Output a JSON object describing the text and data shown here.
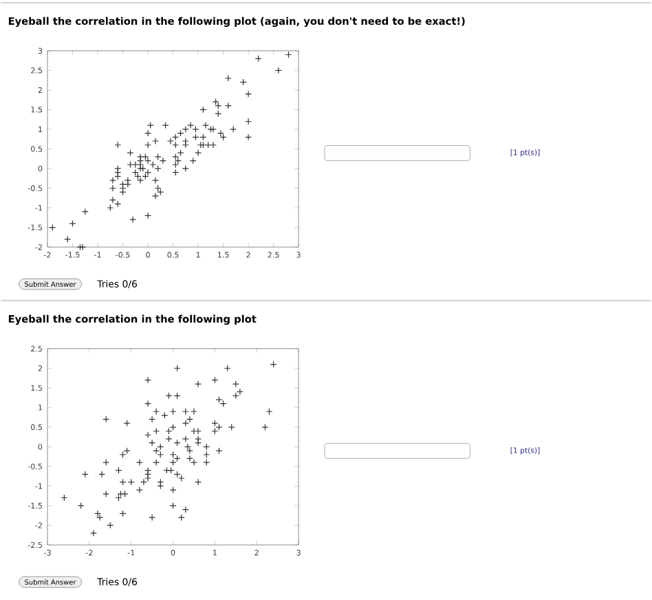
{
  "chart_data": [
    {
      "type": "scatter",
      "title": "Eyeball the correlation in the following plot (again, you don't need to be exact!)",
      "marker": "cross",
      "color": "#333333",
      "x": [
        -1.9,
        -1.6,
        -1.5,
        -1.35,
        -1.3,
        -1.25,
        -0.75,
        -0.7,
        -0.6,
        -0.7,
        -0.7,
        -0.6,
        -0.6,
        -0.6,
        -0.6,
        -0.5,
        -0.5,
        -0.5,
        -0.4,
        -0.4,
        -0.35,
        -0.35,
        -0.25,
        -0.25,
        -0.2,
        -0.15,
        -0.15,
        -0.15,
        -0.15,
        -0.15,
        -0.1,
        -0.05,
        0,
        0,
        0,
        0,
        0.05,
        -0.05,
        0.1,
        -0.3,
        0,
        0.15,
        0.15,
        0.2,
        0.2,
        0.2,
        0.25,
        0.3,
        0.35,
        0.15,
        0.45,
        0.55,
        0.55,
        0.55,
        0.55,
        0.55,
        0.6,
        0.65,
        0.65,
        0.75,
        0.75,
        0.75,
        0.75,
        0.85,
        0.9,
        0.95,
        0.95,
        1.0,
        1.05,
        1.1,
        1.1,
        1.1,
        1.15,
        1.2,
        1.25,
        1.3,
        1.3,
        1.35,
        1.4,
        1.4,
        1.45,
        1.5,
        1.6,
        1.6,
        1.7,
        1.9,
        2.0,
        2.0,
        2.0,
        2.2,
        2.6,
        2.8
      ],
      "values": [
        -1.5,
        -1.8,
        -1.4,
        -2,
        -2,
        -1.1,
        -1,
        -0.8,
        -0.9,
        -0.3,
        -0.5,
        0.6,
        0,
        -0.1,
        -0.2,
        -0.4,
        -0.5,
        -0.6,
        -0.3,
        -0.4,
        0.4,
        0.1,
        0.1,
        -0.1,
        -0.2,
        0.3,
        0.2,
        0.1,
        0,
        -0.3,
        0,
        -0.2,
        0.2,
        -0.1,
        0.6,
        0.9,
        1.1,
        0.3,
        0.1,
        -1.3,
        -1.2,
        -0.7,
        -0.3,
        0,
        0.3,
        -0.5,
        -0.6,
        0.2,
        1.1,
        0.7,
        0.7,
        0.8,
        0.6,
        0.3,
        0.1,
        -0.1,
        0.2,
        0.4,
        0.9,
        1.0,
        0.7,
        0.6,
        0,
        1.1,
        0.2,
        0.8,
        1.0,
        0.4,
        0.6,
        0.8,
        0.6,
        1.5,
        1.1,
        0.6,
        1.0,
        0.6,
        1.0,
        1.7,
        1.6,
        1.4,
        0.9,
        0.8,
        2.3,
        1.6,
        1.0,
        2.2,
        1.9,
        1.2,
        0.8,
        2.8,
        2.5,
        2.9
      ],
      "xlim": [
        -2,
        3
      ],
      "ylim": [
        -2,
        3
      ],
      "xticks": [
        -2,
        -1.5,
        -1,
        -0.5,
        0,
        0.5,
        1,
        1.5,
        2,
        2.5,
        3
      ],
      "yticks": [
        -2,
        -1.5,
        -1,
        -0.5,
        0,
        0.5,
        1,
        1.5,
        2,
        2.5,
        3
      ],
      "annotations": [
        "[1 pt(s)]",
        "Submit Answer",
        "Tries 0/6"
      ]
    },
    {
      "type": "scatter",
      "title": "Eyeball the correlation in the following plot",
      "marker": "cross",
      "color": "#333333",
      "x": [
        -2.6,
        -2.2,
        -2.1,
        -1.9,
        -1.8,
        -1.75,
        -1.7,
        -1.6,
        -1.6,
        -1.6,
        -1.5,
        -1.3,
        -1.3,
        -1.25,
        -1.2,
        -1.2,
        -1.2,
        -1.15,
        -1.1,
        -1.1,
        -1.0,
        -0.8,
        -0.8,
        -0.7,
        -0.6,
        -0.6,
        -0.6,
        -0.6,
        -0.6,
        -0.6,
        -0.5,
        -0.5,
        -0.5,
        -0.4,
        -0.4,
        -0.4,
        -0.4,
        -0.3,
        -0.3,
        -0.3,
        -0.3,
        -0.2,
        -0.15,
        -0.1,
        -0.1,
        -0.1,
        -0.05,
        0,
        0,
        0,
        0,
        0,
        0,
        0.1,
        0.1,
        0.1,
        0.1,
        0.1,
        0.2,
        0.2,
        0.3,
        0.3,
        0.3,
        0.3,
        0.35,
        0.4,
        0.4,
        0.4,
        0.5,
        0.5,
        0.5,
        0.6,
        0.6,
        0.6,
        0.6,
        0.6,
        0.8,
        0.8,
        0.8,
        1.0,
        1.0,
        1.0,
        1.1,
        1.1,
        1.1,
        1.2,
        1.3,
        1.4,
        1.5,
        1.5,
        1.6,
        2.2,
        2.3,
        2.4
      ],
      "values": [
        -1.3,
        -1.5,
        -0.7,
        -2.2,
        -1.7,
        -1.8,
        -0.7,
        -1.2,
        -0.4,
        0.7,
        -2.0,
        -1.3,
        -0.6,
        -1.2,
        -0.9,
        -1.7,
        -0.2,
        -1.2,
        -0.1,
        0.6,
        -0.9,
        -1.1,
        -0.4,
        -0.9,
        1.7,
        1.1,
        0.3,
        -0.6,
        -0.7,
        -0.8,
        0.7,
        0.1,
        -1.8,
        0.9,
        0.4,
        -0.1,
        -0.4,
        0,
        -0.2,
        -0.9,
        -1.0,
        0.8,
        -0.6,
        1.3,
        0.4,
        0.2,
        -0.6,
        0.9,
        0.5,
        -0.2,
        -0.4,
        -1.1,
        -1.5,
        2.0,
        1.3,
        0.1,
        -0.3,
        -0.7,
        -0.8,
        -1.8,
        -1.6,
        0.9,
        0.6,
        0.2,
        0,
        0.7,
        -0.1,
        -0.3,
        0.9,
        0.4,
        -0.4,
        1.6,
        0.4,
        0.2,
        0.1,
        -0.9,
        0,
        -0.2,
        -0.4,
        1.7,
        0.6,
        0.4,
        0.5,
        -0.1,
        1.2,
        1.1,
        2.0,
        0.5,
        1.6,
        1.3,
        1.4,
        0.5,
        0.9,
        2.1
      ],
      "xlim": [
        -3,
        3
      ],
      "ylim": [
        -2.5,
        2.5
      ],
      "xticks": [
        -3,
        -2,
        -1,
        0,
        1,
        2,
        3
      ],
      "yticks": [
        -2.5,
        -2,
        -1.5,
        -1,
        -0.5,
        0,
        0.5,
        1,
        1.5,
        2,
        2.5
      ],
      "annotations": [
        "[1 pt(s)]",
        "Submit Answer",
        "Tries 0/6"
      ]
    }
  ]
}
